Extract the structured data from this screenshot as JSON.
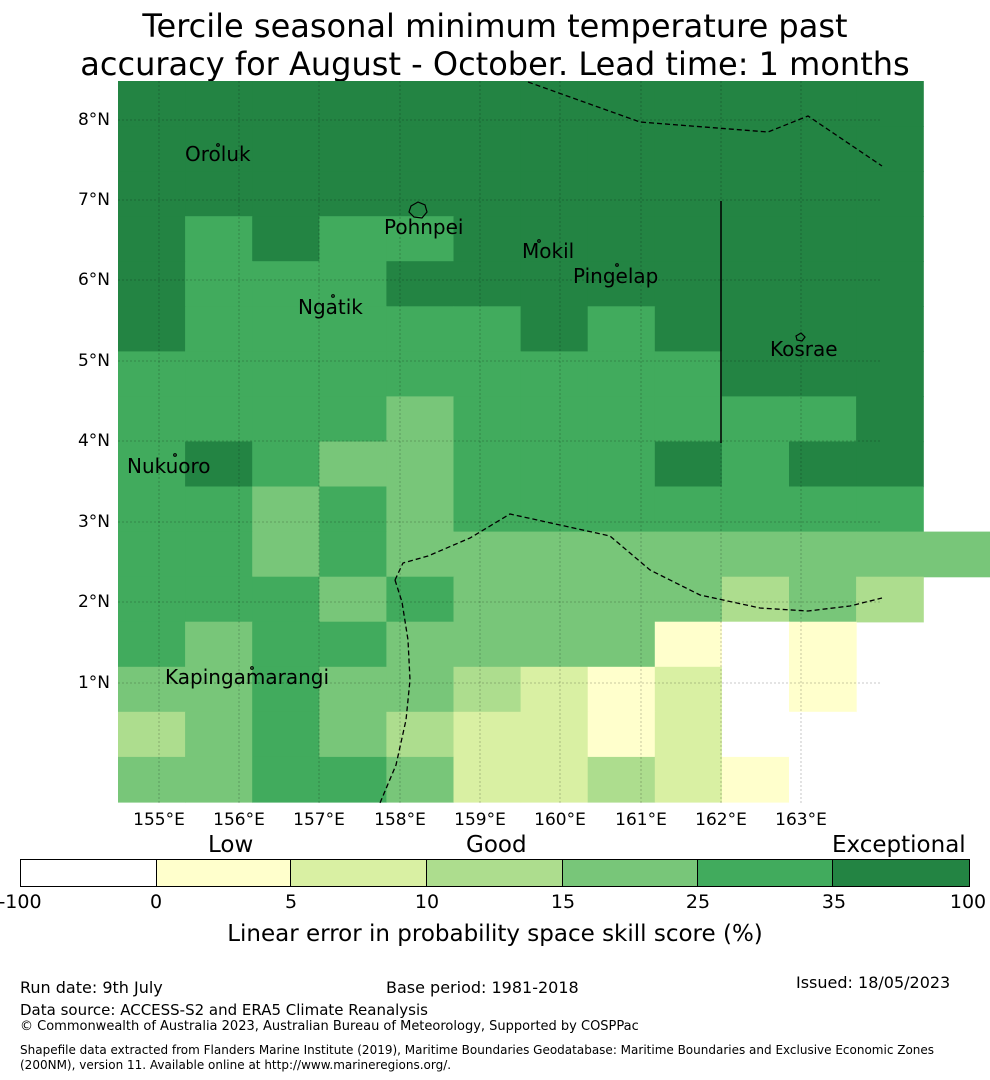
{
  "title": {
    "line1": "Tercile seasonal minimum temperature past",
    "line2": "accuracy for August - October. Lead time: 1 months"
  },
  "map": {
    "lat_labels": [
      "8°N",
      "7°N",
      "6°N",
      "5°N",
      "4°N",
      "3°N",
      "2°N",
      "1°N"
    ],
    "lon_labels": [
      "155°E",
      "156°E",
      "157°E",
      "158°E",
      "159°E",
      "160°E",
      "161°E",
      "162°E",
      "163°E"
    ],
    "places": [
      {
        "name": "Oroluk"
      },
      {
        "name": "Pohnpei"
      },
      {
        "name": "Mokil"
      },
      {
        "name": "Pingelap"
      },
      {
        "name": "Ngatik"
      },
      {
        "name": "Kosrae"
      },
      {
        "name": "Nukuoro"
      },
      {
        "name": "Kapingamarangi"
      }
    ],
    "grid_colors": {
      "A": "#ffffff",
      "B": "#ffffcc",
      "C": "#d9f0a3",
      "D": "#addd8e",
      "E": "#78c679",
      "F": "#41ab5d",
      "G": "#238443"
    },
    "grid_rows": [
      "GGGGGGGGGGGG",
      "GGGGGGGGGGGG",
      "GGGGGGGGGGGG",
      "GFGFFGGGGGGG",
      "GFFFGGGGGGGG",
      "GFFFFFGFGGGG",
      "FFFFFFFFFGGG",
      "FFFFEFFFFFFG",
      "FGFEEFFFGFGG",
      "FFEFEFFFFFFF",
      "FFEFEEEEEEEEE",
      "FFFEFEEEEDED",
      "FEFFEEEEBAB",
      "EEFEEDCBCAB",
      "DEFEDCCBCAA",
      "EEFFECCDCBA"
    ]
  },
  "colorbar": {
    "categories": [
      "Low",
      "Good",
      "Exceptional"
    ],
    "ticks": [
      "-100",
      "0",
      "5",
      "10",
      "15",
      "25",
      "35",
      "100"
    ],
    "colors": [
      "#ffffff",
      "#ffffcc",
      "#d9f0a3",
      "#addd8e",
      "#78c679",
      "#41ab5d",
      "#238443"
    ],
    "label": "Linear error in probability space skill score (%)"
  },
  "footer": {
    "run_date": "Run date: 9th July",
    "base_period": "Base period: 1981-2018",
    "issued": "Issued: 18/05/2023",
    "data_source": "Data source: ACCESS-S2 and ERA5 Climate Reanalysis",
    "copyright": "© Commonwealth of Australia 2023, Australian Bureau of Meteorology, Supported by COSPPac",
    "shapefile_line1": "Shapefile data extracted from Flanders Marine Institute (2019), Maritime Boundaries Geodatabase: Maritime Boundaries and Exclusive Economic Zones",
    "shapefile_line2": "(200NM), version 11. Available online at http://www.marineregions.org/."
  }
}
